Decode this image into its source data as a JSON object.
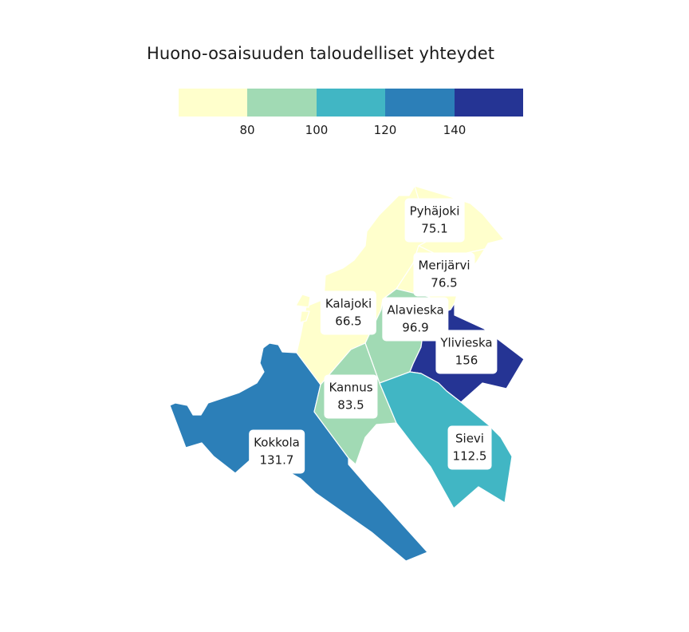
{
  "title": "Huono-osaisuuden taloudelliset yhteydet",
  "legend": {
    "colors": [
      "#ffffcc",
      "#a1dab4",
      "#41b6c4",
      "#2c7fb8",
      "#253494"
    ],
    "ticks": [
      "80",
      "100",
      "120",
      "140"
    ]
  },
  "regions": [
    {
      "name": "Pyhäjoki",
      "value": "75.1",
      "color": "#ffffcc"
    },
    {
      "name": "Merijärvi",
      "value": "76.5",
      "color": "#ffffcc"
    },
    {
      "name": "Kalajoki",
      "value": "66.5",
      "color": "#ffffcc"
    },
    {
      "name": "Alavieska",
      "value": "96.9",
      "color": "#a1dab4"
    },
    {
      "name": "Ylivieska",
      "value": "156",
      "color": "#253494"
    },
    {
      "name": "Kannus",
      "value": "83.5",
      "color": "#a1dab4"
    },
    {
      "name": "Sievi",
      "value": "112.5",
      "color": "#41b6c4"
    },
    {
      "name": "Kokkola",
      "value": "131.7",
      "color": "#2c7fb8"
    }
  ]
}
